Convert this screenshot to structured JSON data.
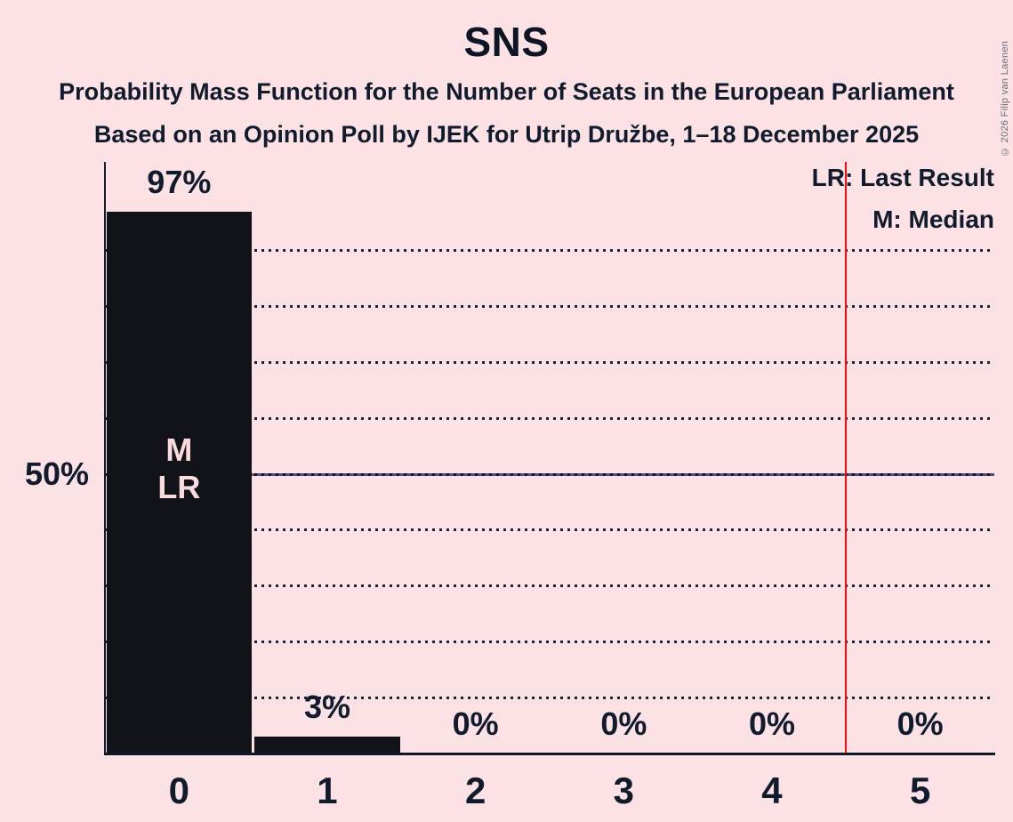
{
  "title": "SNS",
  "subtitle1": "Probability Mass Function for the Number of Seats in the European Parliament",
  "subtitle2": "Based on an Opinion Poll by IJEK for Utrip Družbe, 1–18 December 2025",
  "copyright": "© 2026 Filip van Laenen",
  "legend": {
    "lr": "LR: Last Result",
    "m": "M: Median"
  },
  "y_axis": {
    "label_50": "50%"
  },
  "colors": {
    "background": "#fce2e4",
    "bar": "#121318",
    "text": "#101c2e",
    "red_line": "#f90d0e",
    "gridline": "#1b2138",
    "in_bar_text": "#fadbde"
  },
  "chart_data": {
    "type": "bar",
    "title": "SNS",
    "categories": [
      "0",
      "1",
      "2",
      "3",
      "4",
      "5"
    ],
    "values": [
      97,
      3,
      0,
      0,
      0,
      0
    ],
    "value_labels": [
      "97%",
      "3%",
      "0%",
      "0%",
      "0%",
      "0%"
    ],
    "ylim": [
      0,
      100
    ],
    "y_gridlines_pct": [
      10,
      20,
      30,
      40,
      60,
      70,
      80,
      90
    ],
    "median_line_pct": 50,
    "median_seat": 0,
    "last_result_seat": 0,
    "red_line_x": 4.5,
    "grid": "dotted",
    "legend_position": "top-right",
    "annotations": [
      {
        "category_index": 0,
        "lines": [
          "M",
          "LR"
        ]
      }
    ]
  }
}
